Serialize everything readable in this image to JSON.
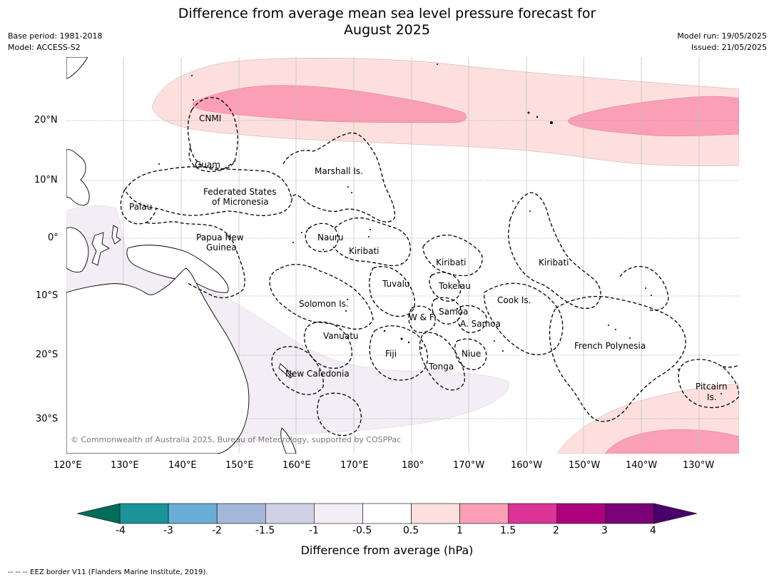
{
  "title_line1": "Difference from average mean sea level pressure forecast for",
  "title_line2": "August 2025",
  "base_period": "Base period: 1981-2018",
  "model": "Model: ACCESS-S2",
  "model_run": "Model run: 19/05/2025",
  "issued": "Issued: 21/05/2025",
  "lon_ticks": [
    "120°E",
    "130°E",
    "140°E",
    "150°E",
    "160°E",
    "170°E",
    "180°",
    "170°W",
    "160°W",
    "150°W",
    "140°W",
    "130°W"
  ],
  "lat_ticks": [
    "20°N",
    "10°N",
    "0°",
    "10°S",
    "20°S",
    "30°S"
  ],
  "places": {
    "cnmi": "CNMI",
    "guam": "Guam",
    "marshall": "Marshall Is.",
    "fsm1": "Federated States",
    "fsm2": "of Micronesia",
    "palau": "Palau",
    "png1": "Papua New",
    "png2": "Guinea",
    "nauru": "Nauru",
    "kiribati_w": "Kiribati",
    "kiribati_c": "Kiribati",
    "kiribati_e": "Kiribati",
    "tuvalu": "Tuvalu",
    "tokelau": "Tokelau",
    "cook": "Cook Is.",
    "solomon": "Solomon Is.",
    "samoa": "Samoa",
    "wf": "W & F",
    "asamoa": "A. Samoa",
    "vanuatu": "Vanuatu",
    "fiji": "Fiji",
    "niue": "Niue",
    "tonga": "Tonga",
    "frpoly": "French Polynesia",
    "newcal": "New Caledonia",
    "pitcairn1": "Pitcairn",
    "pitcairn2": "Is."
  },
  "copyright": "© Commonwealth of Australia 2025, Bureau of Meteorology, supported by COSPPac",
  "colorbar": {
    "labels": [
      "-4",
      "-3",
      "-2",
      "-1.5",
      "-1",
      "-0.5",
      "0.5",
      "1",
      "1.5",
      "2",
      "3",
      "4"
    ],
    "colors": [
      "#1a9399",
      "#6aaed6",
      "#a3b8d9",
      "#d0d1e6",
      "#f3edf5",
      "#ffffff",
      "#fde0dd",
      "#fa9fb5",
      "#dd3497",
      "#ae017e",
      "#7a0177"
    ],
    "under_color": "#006d5b",
    "over_color": "#49006a",
    "title": "Difference from average (hPa)"
  },
  "footnote": "--  --  -- EEZ border V11 (Flanders Marine Institute, 2019)."
}
